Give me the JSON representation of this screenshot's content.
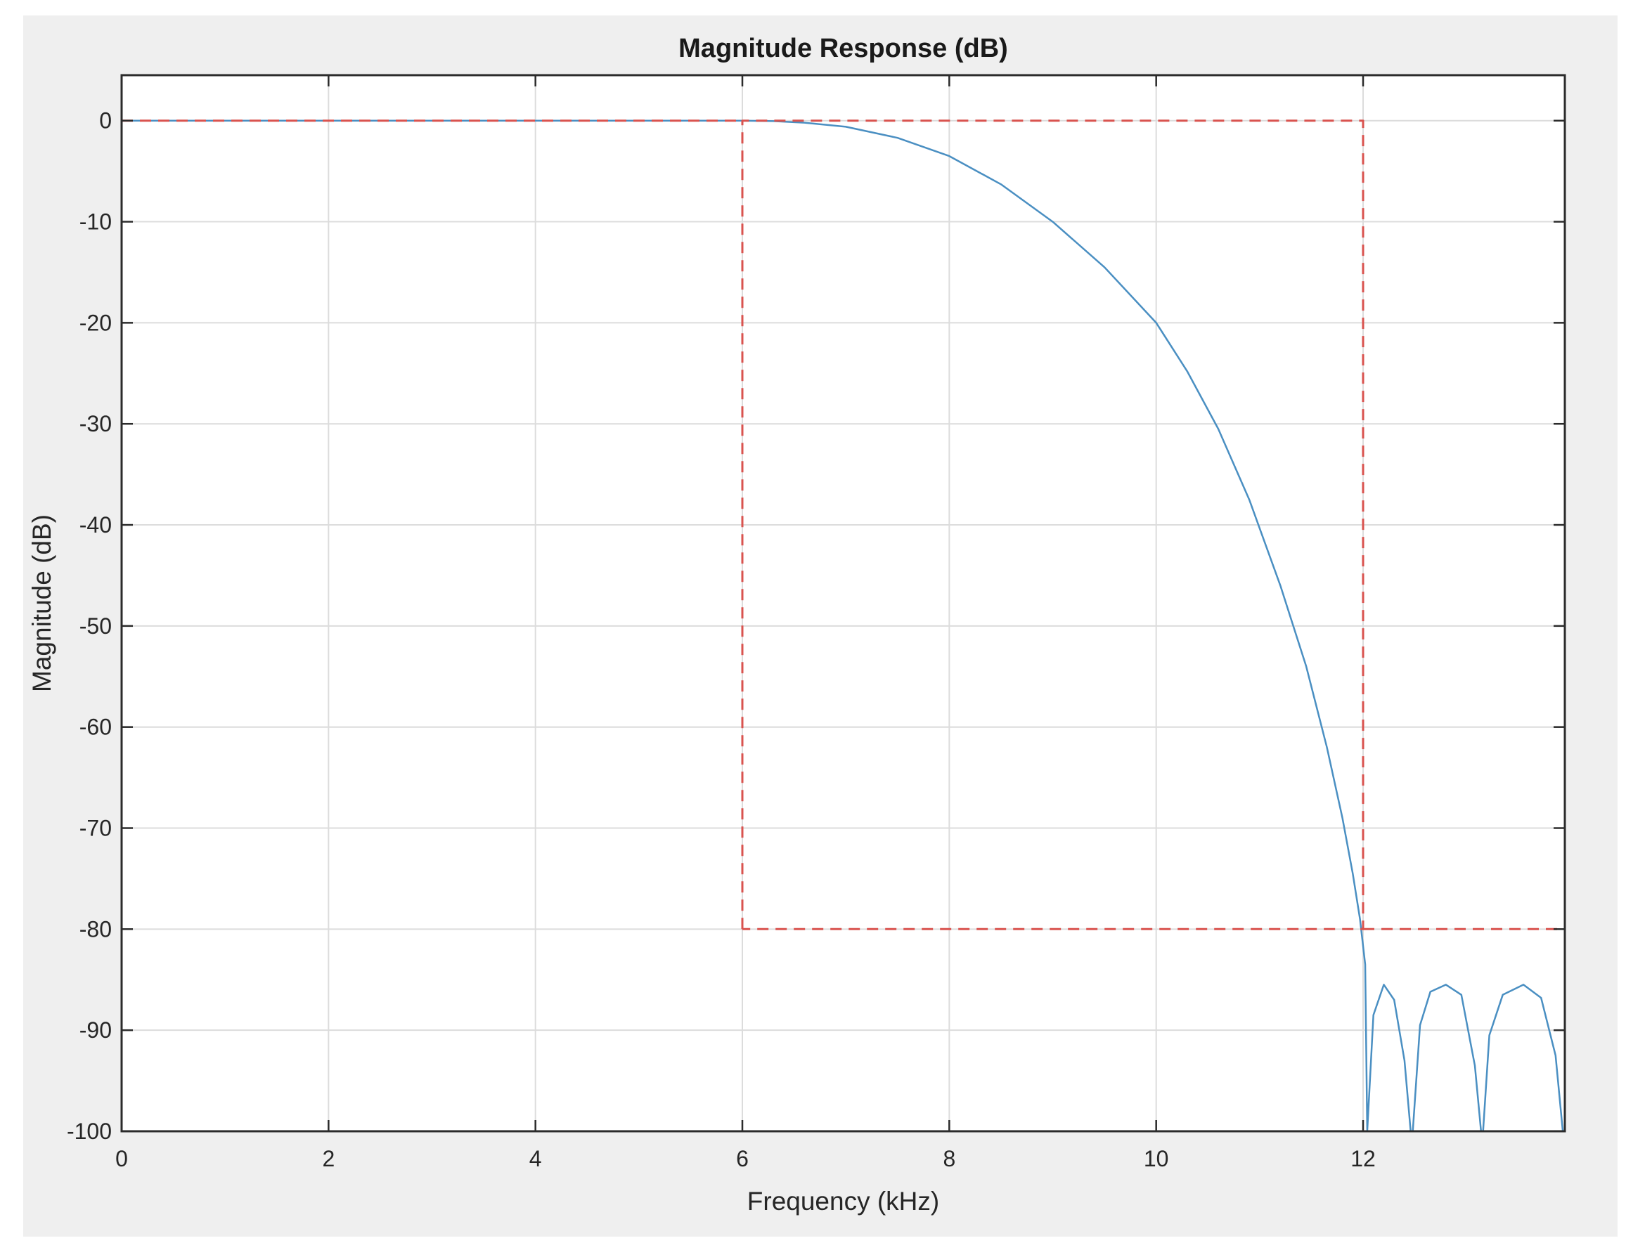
{
  "chart_data": {
    "type": "line",
    "title": "Magnitude Response (dB)",
    "xlabel": "Frequency (kHz)",
    "ylabel": "Magnitude (dB)",
    "xlim": [
      0,
      13.95
    ],
    "ylim": [
      -100,
      4.5
    ],
    "x_ticks": [
      0,
      2,
      4,
      6,
      8,
      10,
      12
    ],
    "y_ticks": [
      0,
      -10,
      -20,
      -30,
      -40,
      -50,
      -60,
      -70,
      -80,
      -90,
      -100
    ],
    "grid": true,
    "series": [
      {
        "role": "magnitude-response",
        "color": "#4a8fc2",
        "style": "solid",
        "x": [
          0,
          6.0,
          6.3,
          6.6,
          7.0,
          7.5,
          8.0,
          8.5,
          9.0,
          9.5,
          10.0,
          10.3,
          10.6,
          10.9,
          11.2,
          11.45,
          11.65,
          11.8,
          11.9,
          11.97,
          12.02,
          12.04,
          12.1,
          12.2,
          12.3,
          12.4,
          12.46,
          12.48,
          12.55,
          12.65,
          12.8,
          12.95,
          13.08,
          13.14,
          13.16,
          13.22,
          13.35,
          13.55,
          13.72,
          13.86,
          13.93
        ],
        "y": [
          0,
          0,
          -0.05,
          -0.2,
          -0.6,
          -1.7,
          -3.5,
          -6.3,
          -10.0,
          -14.5,
          -20.0,
          -24.8,
          -30.5,
          -37.5,
          -46.0,
          -54.0,
          -62.0,
          -69.0,
          -74.5,
          -79.0,
          -83.5,
          -100,
          -88.5,
          -85.5,
          -87.0,
          -93.0,
          -100,
          -100,
          -89.5,
          -86.2,
          -85.5,
          -86.5,
          -93.5,
          -100,
          -100,
          -90.5,
          -86.5,
          -85.5,
          -86.8,
          -92.5,
          -100
        ]
      },
      {
        "role": "passband-spec",
        "color": "#d9534f",
        "style": "dashed",
        "x": [
          0,
          6
        ],
        "y": [
          0,
          0
        ]
      },
      {
        "role": "transition-spec",
        "color": "#d9534f",
        "style": "dashed",
        "x": [
          6,
          6,
          12,
          12,
          6
        ],
        "y": [
          -80,
          0,
          0,
          -80,
          -80
        ]
      },
      {
        "role": "stopband-spec",
        "color": "#d9534f",
        "style": "dashed",
        "x": [
          12,
          13.95
        ],
        "y": [
          -80,
          -80
        ]
      }
    ]
  }
}
